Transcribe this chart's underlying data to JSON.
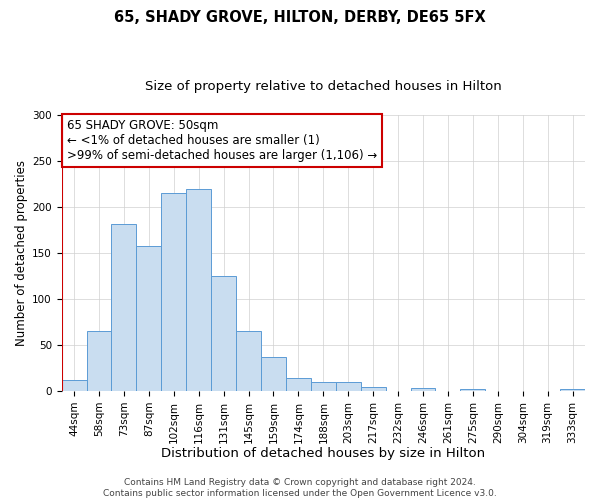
{
  "title": "65, SHADY GROVE, HILTON, DERBY, DE65 5FX",
  "subtitle": "Size of property relative to detached houses in Hilton",
  "xlabel": "Distribution of detached houses by size in Hilton",
  "ylabel": "Number of detached properties",
  "bar_labels": [
    "44sqm",
    "58sqm",
    "73sqm",
    "87sqm",
    "102sqm",
    "116sqm",
    "131sqm",
    "145sqm",
    "159sqm",
    "174sqm",
    "188sqm",
    "203sqm",
    "217sqm",
    "232sqm",
    "246sqm",
    "261sqm",
    "275sqm",
    "290sqm",
    "304sqm",
    "319sqm",
    "333sqm"
  ],
  "bar_values": [
    12,
    65,
    181,
    158,
    215,
    220,
    125,
    65,
    37,
    14,
    10,
    10,
    4,
    0,
    3,
    0,
    2,
    0,
    0,
    0,
    2
  ],
  "bar_color": "#c9ddf0",
  "bar_edge_color": "#5b9bd5",
  "highlight_bar_edge_color": "#cc0000",
  "ylim": [
    0,
    300
  ],
  "yticks": [
    0,
    50,
    100,
    150,
    200,
    250,
    300
  ],
  "annotation_line1": "65 SHADY GROVE: 50sqm",
  "annotation_line2": "← <1% of detached houses are smaller (1)",
  "annotation_line3": ">99% of semi-detached houses are larger (1,106) →",
  "annotation_box_color": "#ffffff",
  "annotation_box_edge_color": "#cc0000",
  "footer_line1": "Contains HM Land Registry data © Crown copyright and database right 2024.",
  "footer_line2": "Contains public sector information licensed under the Open Government Licence v3.0.",
  "background_color": "#ffffff",
  "grid_color": "#d0d0d0",
  "title_fontsize": 10.5,
  "subtitle_fontsize": 9.5,
  "xlabel_fontsize": 9.5,
  "ylabel_fontsize": 8.5,
  "tick_fontsize": 7.5,
  "annotation_fontsize": 8.5,
  "footer_fontsize": 6.5
}
